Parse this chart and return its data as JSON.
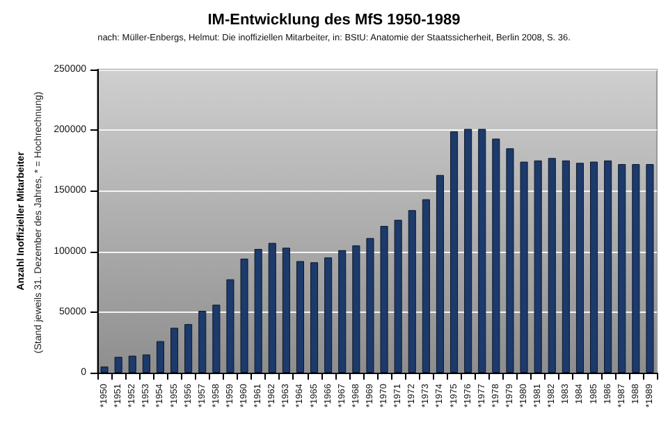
{
  "chart_data": {
    "type": "bar",
    "title": "IM-Entwicklung des MfS 1950-1989",
    "subtitle": "nach: Müller-Enbergs, Helmut: Die inoffiziellen Mitarbeiter, in: BStU: Anatomie der Staatssicherheit, Berlin 2008, S. 36.",
    "ylabel": "Anzahl Inoffizieller Mitarbeiter",
    "annotations": [
      "(Stand jeweils 31. Dezember des Jahres, * = Hochrechnung)"
    ],
    "categories": [
      "*1950",
      "*1951",
      "*1952",
      "*1953",
      "*1954",
      "*1955",
      "*1956",
      "*1957",
      "*1958",
      "*1959",
      "*1960",
      "*1961",
      "*1962",
      "*1963",
      "*1964",
      "*1965",
      "*1966",
      "*1967",
      "*1968",
      "*1969",
      "*1970",
      "*1971",
      "*1972",
      "*1973",
      "*1974",
      "*1975",
      "*1976",
      "*1977",
      "*1978",
      "*1979",
      "*1980",
      "*1981",
      "*1982",
      "1983",
      "1984",
      "1985",
      "1986",
      "*1987",
      "1988",
      "*1989"
    ],
    "values": [
      5000,
      13000,
      14000,
      15000,
      26000,
      37000,
      40000,
      51000,
      56000,
      77000,
      94000,
      102000,
      107000,
      103000,
      92000,
      91000,
      95000,
      101000,
      105000,
      111000,
      121000,
      126000,
      134000,
      143000,
      163000,
      199000,
      201000,
      201000,
      193000,
      185000,
      174000,
      175000,
      177000,
      175000,
      173000,
      174000,
      175000,
      172000,
      172000,
      172000
    ],
    "color": "#1c3a6b",
    "ylim": [
      0,
      250000
    ],
    "yticks": [
      0,
      50000,
      100000,
      150000,
      200000,
      250000
    ],
    "grid": "y"
  }
}
